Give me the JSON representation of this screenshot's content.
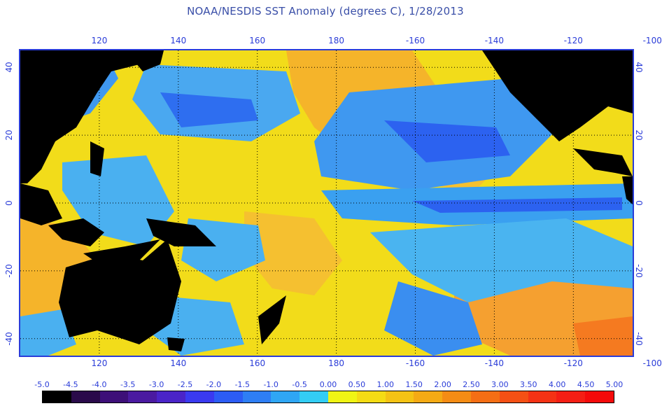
{
  "title": "NOAA/NESDIS SST Anomaly (degrees C), 1/28/2013",
  "map": {
    "lon_range": [
      100,
      255
    ],
    "lat_range": [
      -45,
      45
    ],
    "lon_ticks": [
      {
        "value": 120,
        "label": "120"
      },
      {
        "value": 140,
        "label": "140"
      },
      {
        "value": 160,
        "label": "160"
      },
      {
        "value": 180,
        "label": "180"
      },
      {
        "value": 200,
        "label": "-160"
      },
      {
        "value": 220,
        "label": "-140"
      },
      {
        "value": 240,
        "label": "-120"
      },
      {
        "value": 260,
        "label": "-100"
      }
    ],
    "lat_ticks": [
      {
        "value": 40,
        "label": "40"
      },
      {
        "value": 20,
        "label": "20"
      },
      {
        "value": 0,
        "label": "0"
      },
      {
        "value": -20,
        "label": "-20"
      },
      {
        "value": -40,
        "label": "-40"
      }
    ],
    "grid": "dotted",
    "land_color": "#000000",
    "frame_color": "#2a3cd8"
  },
  "legend": {
    "labels": [
      "-5.0",
      "-4.5",
      "-4.0",
      "-3.5",
      "-3.0",
      "-2.5",
      "-2.0",
      "-1.5",
      "-1.0",
      "-0.5",
      "0.00",
      "0.50",
      "1.00",
      "1.50",
      "2.00",
      "2.50",
      "3.00",
      "3.50",
      "4.00",
      "4.50",
      "5.00"
    ],
    "colors": [
      "#000000",
      "#2a0a4a",
      "#3d0f78",
      "#4a1aa0",
      "#4a24c8",
      "#3a3af0",
      "#2c5cf5",
      "#2e7ef5",
      "#2fa6f5",
      "#33cdf5",
      "#f0f514",
      "#f5dc14",
      "#f5c314",
      "#f5aa14",
      "#f58c14",
      "#f56e14",
      "#f55014",
      "#f53214",
      "#f51e14",
      "#f50a0a"
    ]
  }
}
